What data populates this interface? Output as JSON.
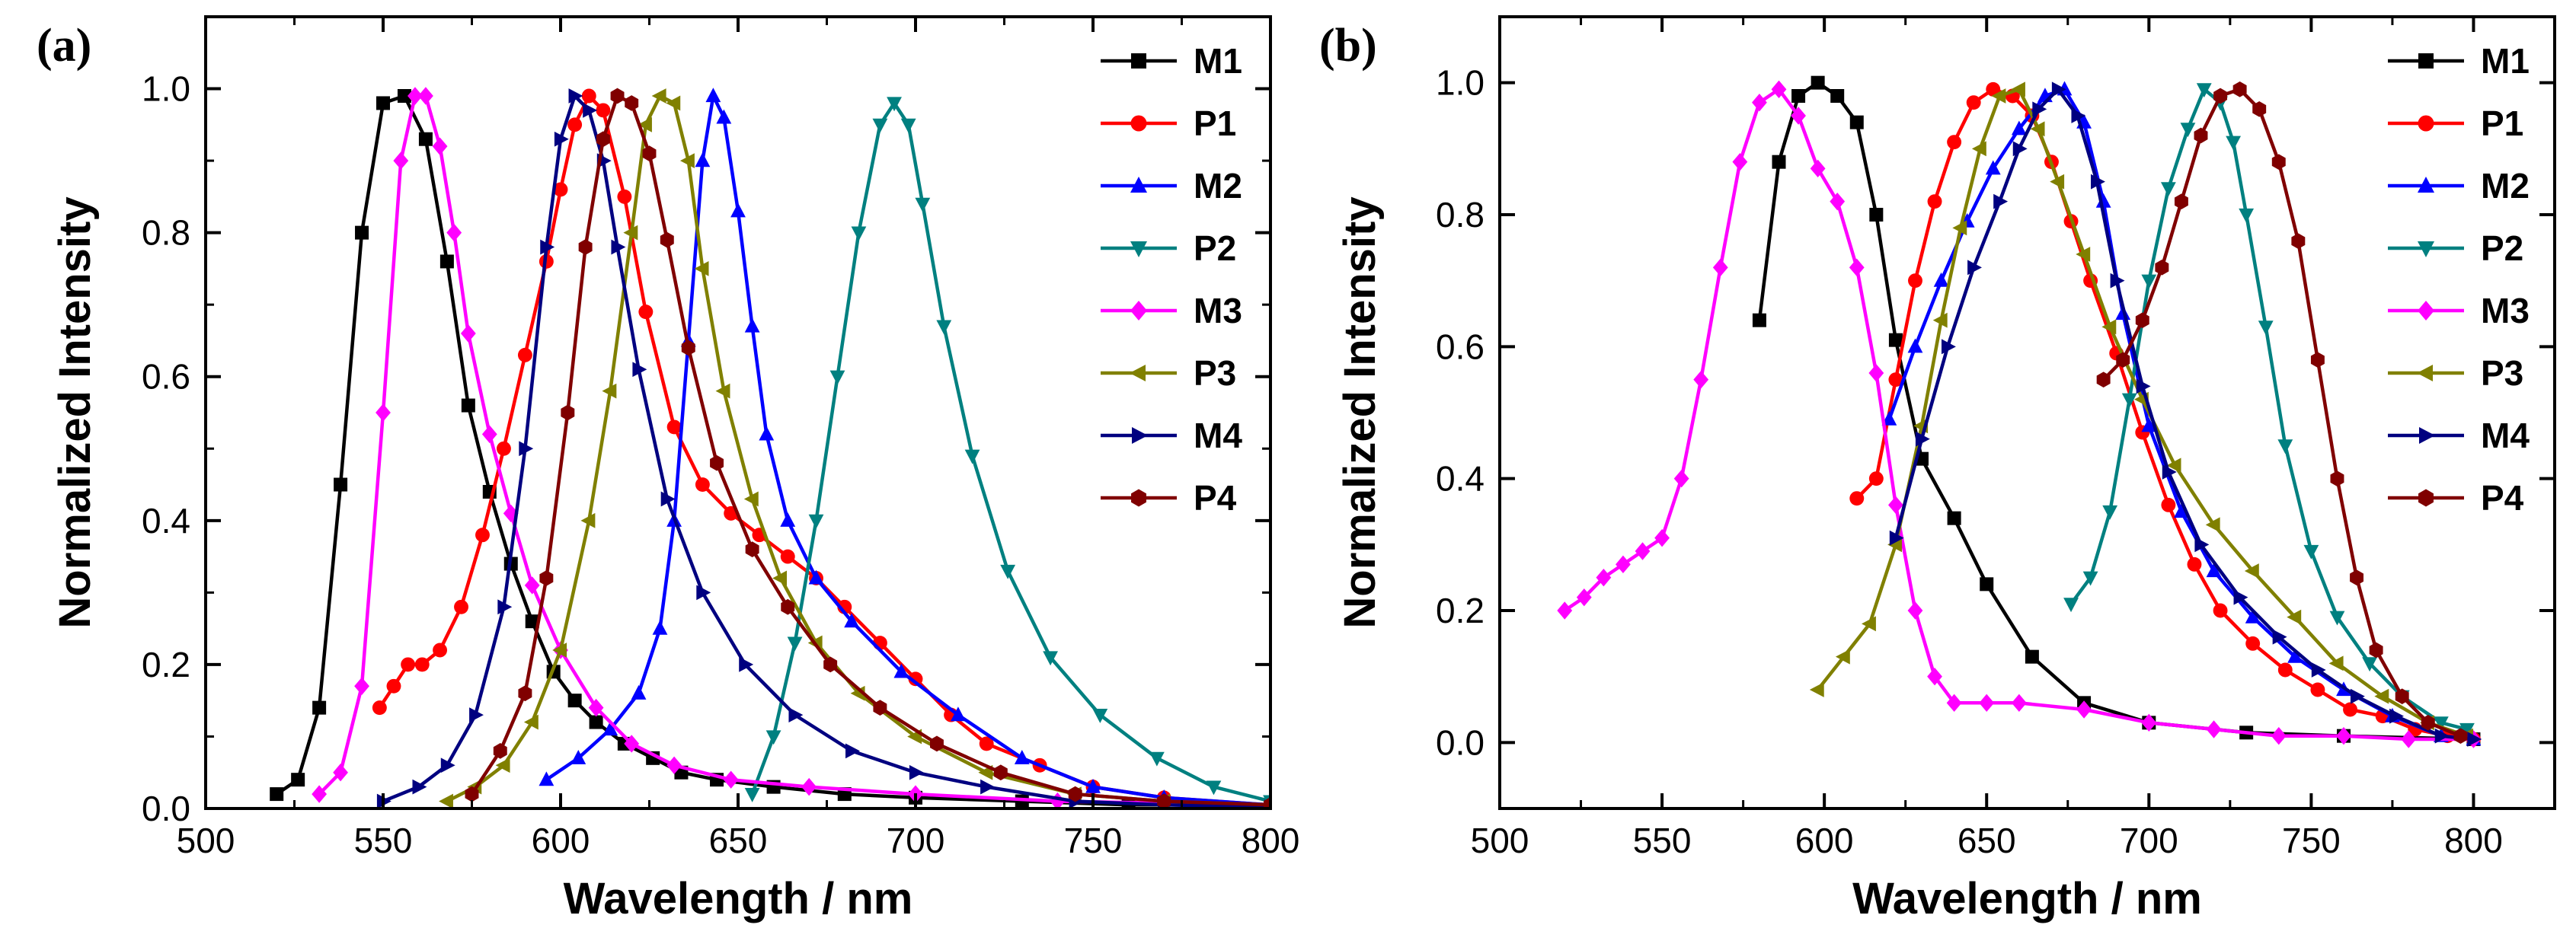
{
  "chart_data": [
    {
      "type": "line",
      "panel_label": "(a)",
      "xlabel": "Wavelength / nm",
      "ylabel": "Normalized Intensity",
      "xlim": [
        500,
        800
      ],
      "ylim": [
        0,
        1.1
      ],
      "xticks": [
        "500",
        "550",
        "600",
        "650",
        "700",
        "750",
        "800"
      ],
      "yticks": [
        "0.0",
        "0.2",
        "0.4",
        "0.6",
        "0.8",
        "1.0"
      ],
      "legend_position": "top-right",
      "series": [
        {
          "name": "M1",
          "color": "#000000",
          "marker": "square",
          "x": [
            520,
            526,
            532,
            538,
            544,
            550,
            556,
            562,
            568,
            574,
            580,
            586,
            592,
            598,
            604,
            610,
            618,
            626,
            634,
            644,
            660,
            680,
            700,
            730,
            760,
            800
          ],
          "y": [
            0.02,
            0.04,
            0.14,
            0.45,
            0.8,
            0.98,
            0.99,
            0.93,
            0.76,
            0.56,
            0.44,
            0.34,
            0.26,
            0.19,
            0.15,
            0.12,
            0.09,
            0.07,
            0.05,
            0.04,
            0.03,
            0.02,
            0.015,
            0.01,
            0.005,
            0.005
          ]
        },
        {
          "name": "P1",
          "color": "#ff0000",
          "marker": "circle",
          "x": [
            549,
            553,
            557,
            561,
            566,
            572,
            578,
            584,
            590,
            596,
            600,
            604,
            608,
            612,
            618,
            624,
            632,
            640,
            648,
            656,
            664,
            672,
            680,
            690,
            700,
            710,
            720,
            735,
            750,
            770,
            800
          ],
          "y": [
            0.14,
            0.17,
            0.2,
            0.2,
            0.22,
            0.28,
            0.38,
            0.5,
            0.63,
            0.76,
            0.86,
            0.95,
            0.99,
            0.97,
            0.85,
            0.69,
            0.53,
            0.45,
            0.41,
            0.38,
            0.35,
            0.32,
            0.28,
            0.23,
            0.18,
            0.13,
            0.09,
            0.06,
            0.03,
            0.015,
            0.005
          ]
        },
        {
          "name": "M2",
          "color": "#0000ff",
          "marker": "triangle-up",
          "x": [
            596,
            605,
            614,
            622,
            628,
            632,
            636,
            640,
            643,
            646,
            650,
            654,
            658,
            664,
            672,
            682,
            696,
            712,
            730,
            750,
            770,
            800
          ],
          "y": [
            0.04,
            0.07,
            0.11,
            0.16,
            0.25,
            0.4,
            0.65,
            0.9,
            0.99,
            0.96,
            0.83,
            0.67,
            0.52,
            0.4,
            0.32,
            0.26,
            0.19,
            0.13,
            0.07,
            0.03,
            0.015,
            0.005
          ]
        },
        {
          "name": "P2",
          "color": "#008080",
          "marker": "triangle-down",
          "x": [
            654,
            660,
            666,
            672,
            678,
            684,
            690,
            694,
            698,
            702,
            708,
            716,
            726,
            738,
            752,
            768,
            784,
            800
          ],
          "y": [
            0.02,
            0.1,
            0.23,
            0.4,
            0.6,
            0.8,
            0.95,
            0.98,
            0.95,
            0.84,
            0.67,
            0.49,
            0.33,
            0.21,
            0.13,
            0.07,
            0.03,
            0.01
          ]
        },
        {
          "name": "M3",
          "color": "#ff00ff",
          "marker": "diamond",
          "x": [
            532,
            538,
            544,
            550,
            555,
            559,
            562,
            566,
            570,
            574,
            580,
            586,
            592,
            600,
            610,
            620,
            632,
            648,
            670,
            700,
            740,
            800
          ],
          "y": [
            0.02,
            0.05,
            0.17,
            0.55,
            0.9,
            0.99,
            0.99,
            0.92,
            0.8,
            0.66,
            0.52,
            0.41,
            0.31,
            0.22,
            0.14,
            0.09,
            0.06,
            0.04,
            0.03,
            0.02,
            0.01,
            0.005
          ]
        },
        {
          "name": "P3",
          "color": "#808000",
          "marker": "triangle-left",
          "x": [
            568,
            576,
            584,
            592,
            600,
            608,
            614,
            620,
            624,
            628,
            632,
            636,
            640,
            646,
            654,
            662,
            672,
            684,
            700,
            720,
            745,
            770,
            800
          ],
          "y": [
            0.01,
            0.03,
            0.06,
            0.12,
            0.22,
            0.4,
            0.58,
            0.8,
            0.95,
            0.99,
            0.98,
            0.9,
            0.75,
            0.58,
            0.43,
            0.32,
            0.23,
            0.16,
            0.1,
            0.05,
            0.02,
            0.01,
            0.005
          ]
        },
        {
          "name": "M4",
          "color": "#000080",
          "marker": "triangle-right",
          "x": [
            550,
            560,
            568,
            576,
            584,
            590,
            596,
            600,
            604,
            608,
            612,
            616,
            622,
            630,
            640,
            652,
            666,
            682,
            700,
            720,
            745,
            770,
            800
          ],
          "y": [
            0.01,
            0.03,
            0.06,
            0.13,
            0.28,
            0.5,
            0.78,
            0.93,
            0.99,
            0.97,
            0.9,
            0.78,
            0.61,
            0.43,
            0.3,
            0.2,
            0.13,
            0.08,
            0.05,
            0.03,
            0.01,
            0.005,
            0.002
          ]
        },
        {
          "name": "P4",
          "color": "#800000",
          "marker": "hexagon",
          "x": [
            575,
            583,
            590,
            596,
            602,
            607,
            612,
            616,
            620,
            625,
            630,
            636,
            644,
            654,
            664,
            676,
            690,
            706,
            724,
            745,
            770,
            800
          ],
          "y": [
            0.02,
            0.08,
            0.16,
            0.32,
            0.55,
            0.78,
            0.93,
            0.99,
            0.98,
            0.91,
            0.79,
            0.64,
            0.48,
            0.36,
            0.28,
            0.2,
            0.14,
            0.09,
            0.05,
            0.02,
            0.01,
            0.005
          ]
        }
      ]
    },
    {
      "type": "line",
      "panel_label": "(b)",
      "xlabel": "Wavelength / nm",
      "ylabel": "Normalized Intensity",
      "xlim": [
        500,
        825
      ],
      "ylim": [
        -0.1,
        1.1
      ],
      "xticks": [
        "500",
        "550",
        "600",
        "650",
        "700",
        "750",
        "800"
      ],
      "yticks": [
        "0.0",
        "0.2",
        "0.4",
        "0.6",
        "0.8",
        "1.0"
      ],
      "legend_position": "top-right",
      "series": [
        {
          "name": "M1",
          "color": "#000000",
          "marker": "square",
          "x": [
            580,
            586,
            592,
            598,
            604,
            610,
            616,
            622,
            630,
            640,
            650,
            664,
            680,
            700,
            730,
            760,
            800
          ],
          "y": [
            0.64,
            0.88,
            0.98,
            1.0,
            0.98,
            0.94,
            0.8,
            0.61,
            0.43,
            0.34,
            0.24,
            0.13,
            0.06,
            0.03,
            0.015,
            0.01,
            0.005
          ]
        },
        {
          "name": "P1",
          "color": "#ff0000",
          "marker": "circle",
          "x": [
            610,
            616,
            622,
            628,
            634,
            640,
            646,
            652,
            658,
            664,
            670,
            676,
            682,
            690,
            698,
            706,
            714,
            722,
            732,
            742,
            752,
            762,
            772,
            782,
            792,
            800
          ],
          "y": [
            0.37,
            0.4,
            0.55,
            0.7,
            0.82,
            0.91,
            0.97,
            0.99,
            0.98,
            0.95,
            0.88,
            0.79,
            0.7,
            0.59,
            0.47,
            0.36,
            0.27,
            0.2,
            0.15,
            0.11,
            0.08,
            0.05,
            0.04,
            0.02,
            0.01,
            0.005
          ]
        },
        {
          "name": "M2",
          "color": "#0000ff",
          "marker": "triangle-up",
          "x": [
            620,
            628,
            636,
            644,
            652,
            660,
            668,
            674,
            680,
            686,
            692,
            700,
            710,
            720,
            732,
            745,
            760,
            775,
            790,
            800
          ],
          "y": [
            0.49,
            0.6,
            0.7,
            0.79,
            0.87,
            0.93,
            0.98,
            0.99,
            0.94,
            0.82,
            0.65,
            0.48,
            0.35,
            0.26,
            0.19,
            0.13,
            0.08,
            0.04,
            0.01,
            0.005
          ]
        },
        {
          "name": "P2",
          "color": "#008080",
          "marker": "triangle-down",
          "x": [
            676,
            682,
            688,
            694,
            700,
            706,
            712,
            717,
            722,
            726,
            730,
            736,
            742,
            750,
            758,
            768,
            778,
            790,
            798
          ],
          "y": [
            0.21,
            0.25,
            0.35,
            0.52,
            0.7,
            0.84,
            0.93,
            0.99,
            0.97,
            0.91,
            0.8,
            0.63,
            0.45,
            0.29,
            0.19,
            0.12,
            0.07,
            0.03,
            0.02
          ]
        },
        {
          "name": "M3",
          "color": "#ff00ff",
          "marker": "diamond",
          "x": [
            520,
            526,
            532,
            538,
            544,
            550,
            556,
            562,
            568,
            574,
            580,
            586,
            592,
            598,
            604,
            610,
            616,
            622,
            628,
            634,
            640,
            650,
            660,
            680,
            700,
            720,
            740,
            760,
            780,
            800
          ],
          "y": [
            0.2,
            0.22,
            0.25,
            0.27,
            0.29,
            0.31,
            0.4,
            0.55,
            0.72,
            0.88,
            0.97,
            0.99,
            0.95,
            0.87,
            0.82,
            0.72,
            0.56,
            0.36,
            0.2,
            0.1,
            0.06,
            0.06,
            0.06,
            0.05,
            0.03,
            0.02,
            0.01,
            0.01,
            0.005,
            0.005
          ]
        },
        {
          "name": "P3",
          "color": "#808000",
          "marker": "triangle-left",
          "x": [
            598,
            606,
            614,
            622,
            630,
            636,
            642,
            648,
            654,
            660,
            666,
            672,
            680,
            688,
            698,
            708,
            720,
            732,
            745,
            758,
            772,
            786,
            798
          ],
          "y": [
            0.08,
            0.13,
            0.18,
            0.3,
            0.48,
            0.64,
            0.78,
            0.9,
            0.98,
            0.99,
            0.93,
            0.85,
            0.74,
            0.63,
            0.52,
            0.42,
            0.33,
            0.26,
            0.19,
            0.12,
            0.07,
            0.03,
            0.01
          ]
        },
        {
          "name": "M4",
          "color": "#000080",
          "marker": "triangle-right",
          "x": [
            622,
            630,
            638,
            646,
            654,
            660,
            666,
            672,
            678,
            684,
            690,
            698,
            706,
            716,
            728,
            740,
            752,
            764,
            776,
            790,
            800
          ],
          "y": [
            0.31,
            0.46,
            0.6,
            0.72,
            0.82,
            0.9,
            0.96,
            0.99,
            0.95,
            0.85,
            0.7,
            0.54,
            0.41,
            0.3,
            0.22,
            0.16,
            0.11,
            0.07,
            0.04,
            0.01,
            0.005
          ]
        },
        {
          "name": "P4",
          "color": "#800000",
          "marker": "hexagon",
          "x": [
            686,
            692,
            698,
            704,
            710,
            716,
            722,
            728,
            734,
            740,
            746,
            752,
            758,
            764,
            770,
            778,
            786,
            796
          ],
          "y": [
            0.55,
            0.58,
            0.64,
            0.72,
            0.82,
            0.92,
            0.98,
            0.99,
            0.96,
            0.88,
            0.76,
            0.58,
            0.4,
            0.25,
            0.14,
            0.07,
            0.03,
            0.01
          ]
        }
      ]
    }
  ]
}
